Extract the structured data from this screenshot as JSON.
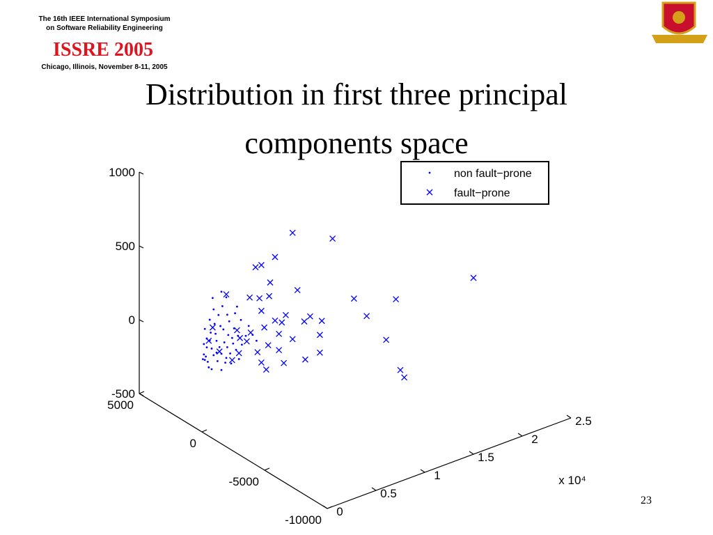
{
  "header": {
    "line1": "The 16th IEEE International Symposium",
    "line2": "on Software Reliability Engineering",
    "event": "ISSRE 2005",
    "place": "Chicago, Illinois, November 8-11, 2005"
  },
  "title_lines": [
    "Distribution in first three principal",
    "components space"
  ],
  "page_number": "23",
  "chart_data": {
    "type": "scatter3d",
    "xlim": [
      0,
      25000
    ],
    "xticks": [
      0,
      {
        "value": 5000,
        "label": "0.5"
      },
      {
        "value": 10000,
        "label": "1"
      },
      {
        "value": 15000,
        "label": "1.5"
      },
      {
        "value": 20000,
        "label": "2"
      },
      {
        "value": 25000,
        "label": "2.5"
      }
    ],
    "x_multiplier": "x 10⁴",
    "ylim": [
      -10000,
      5000
    ],
    "yticks": [
      -10000,
      -5000,
      0,
      5000
    ],
    "zlim": [
      -500,
      1000
    ],
    "zticks": [
      -500,
      0,
      500,
      1000
    ],
    "legend": "upper right",
    "series": [
      {
        "name": "non fault−prone",
        "marker": "dot",
        "color": "#0000ff",
        "x": [
          300,
          200,
          500,
          800,
          1000,
          1200,
          600,
          400,
          1500,
          1800,
          2000,
          2300,
          2600,
          2900,
          3200,
          3500,
          900,
          1300,
          1700,
          2100,
          2500,
          1100,
          2800,
          3300,
          3700,
          4100,
          4500,
          700,
          1600,
          2400,
          3000,
          3800,
          500,
          1400,
          2200,
          1900,
          2700,
          3400,
          4000,
          4800,
          5200,
          5600,
          200,
          100,
          1000,
          2000,
          1500,
          2500,
          3100,
          3600,
          800,
          1200,
          2000,
          300,
          2600
        ],
        "y": [
          0,
          0,
          0,
          0,
          0,
          0,
          0,
          0,
          0,
          0,
          0,
          0,
          0,
          0,
          0,
          0,
          0,
          0,
          0,
          0,
          0,
          0,
          0,
          0,
          0,
          0,
          0,
          0,
          0,
          0,
          0,
          0,
          0,
          0,
          0,
          0,
          0,
          0,
          0,
          0,
          0,
          0,
          0,
          0,
          0,
          0,
          0,
          0,
          0,
          0,
          0,
          0,
          0,
          0,
          0
        ],
        "values": [
          -20,
          20,
          60,
          100,
          40,
          -10,
          -40,
          0,
          80,
          30,
          -20,
          50,
          10,
          -40,
          20,
          -30,
          150,
          200,
          250,
          300,
          350,
          380,
          180,
          120,
          60,
          -10,
          40,
          -80,
          -60,
          -90,
          -110,
          -100,
          120,
          130,
          140,
          170,
          90,
          220,
          160,
          100,
          30,
          -20,
          90,
          -10,
          -100,
          -130,
          0,
          -60,
          60,
          260,
          240,
          300,
          400,
          190,
          230
        ]
      },
      {
        "name": "fault−prone",
        "marker": "x",
        "color": "#0000ff",
        "x": [
          9300,
          13400,
          7500,
          5500,
          6100,
          24000,
          7000,
          9800,
          2500,
          15600,
          19900,
          5900,
          6900,
          4900,
          16900,
          11100,
          10500,
          12300,
          8600,
          6100,
          7500,
          8200,
          3600,
          5000,
          6400,
          7900,
          9300,
          12100,
          18900,
          6800,
          7900,
          5700,
          3800,
          12100,
          10600,
          8400,
          6100,
          6600,
          3100,
          16500,
          16900,
          1100,
          700,
          1800,
          3900,
          4600
        ],
        "y": [
          0,
          0,
          0,
          0,
          0,
          -3000,
          0,
          0,
          0,
          0,
          0,
          0,
          0,
          0,
          0,
          0,
          0,
          0,
          0,
          0,
          0,
          0,
          0,
          0,
          0,
          0,
          0,
          0,
          0,
          0,
          0,
          0,
          0,
          0,
          0,
          0,
          0,
          0,
          0,
          -3000,
          -3000,
          0,
          0,
          0,
          0,
          0
        ],
        "values": [
          620,
          480,
          500,
          480,
          480,
          110,
          340,
          220,
          370,
          20,
          -90,
          260,
          250,
          290,
          -130,
          10,
          -10,
          -50,
          80,
          170,
          70,
          40,
          100,
          50,
          50,
          -30,
          -100,
          -140,
          -340,
          -80,
          -140,
          -100,
          -60,
          -260,
          -270,
          -240,
          -180,
          -240,
          -90,
          -330,
          -390,
          180,
          100,
          0,
          40,
          0
        ]
      }
    ]
  }
}
